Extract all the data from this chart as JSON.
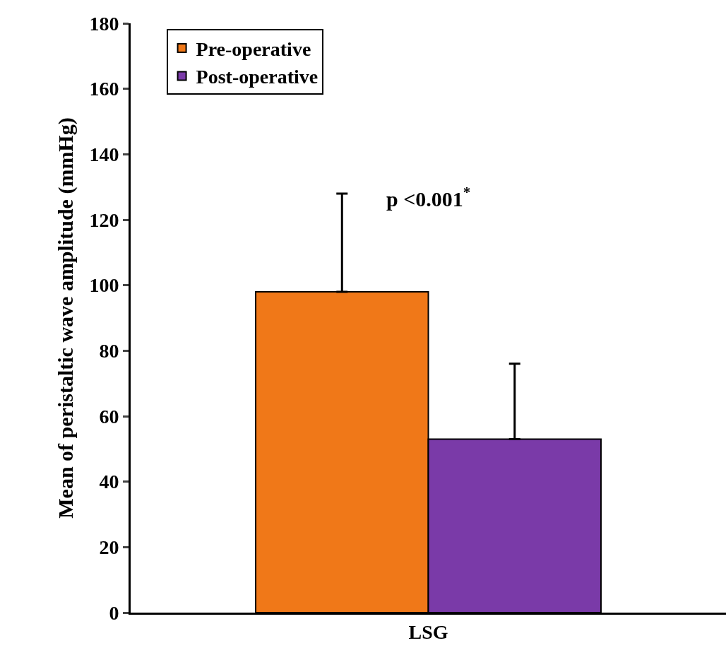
{
  "chart_data": {
    "type": "bar",
    "categories": [
      "LSG"
    ],
    "ylabel": "Mean of peristaltic wave amplitude (mmHg)",
    "ylim": [
      0,
      180
    ],
    "yticks": [
      0,
      20,
      40,
      60,
      80,
      100,
      120,
      140,
      160,
      180
    ],
    "legend": "top left",
    "grid": false,
    "series": [
      {
        "name": "Pre-operative",
        "color": "#f07818",
        "values": [
          98
        ],
        "errors": [
          [
            98,
            128
          ]
        ]
      },
      {
        "name": "Post-operative",
        "color": "#7a3aa8",
        "values": [
          53
        ],
        "errors": [
          [
            53,
            76
          ]
        ]
      }
    ],
    "annotations": [
      "p <0.001$^{*}$"
    ]
  }
}
